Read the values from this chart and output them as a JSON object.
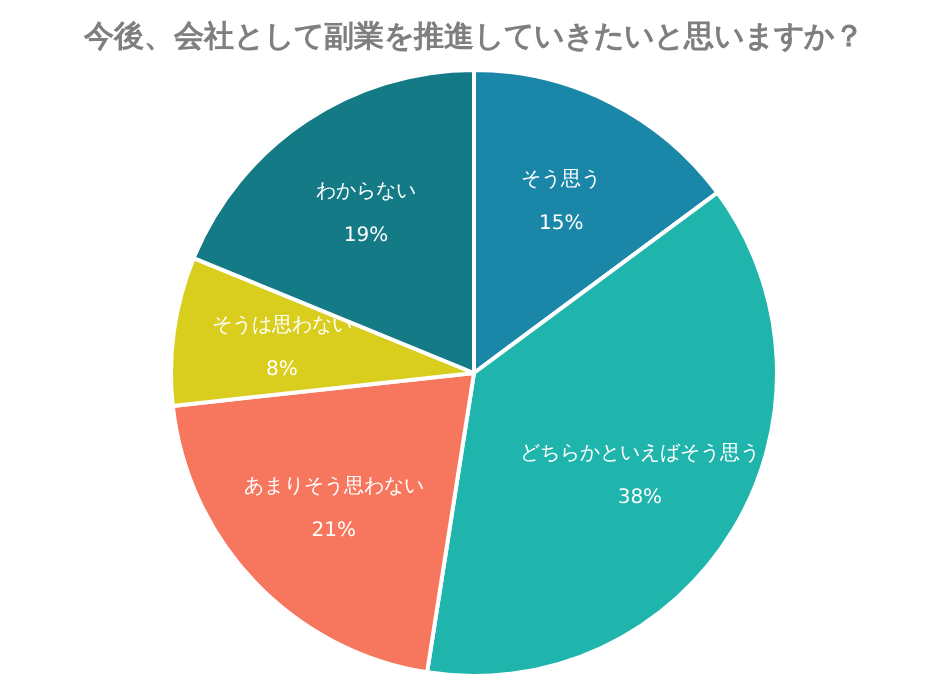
{
  "chart_data": {
    "type": "pie",
    "title": "今後、会社として副業を推進していきたいと思いますか？",
    "categories": [
      "そう思う",
      "どちらかといえばそう思う",
      "あまりそう思わない",
      "そうは思わない",
      "わからない"
    ],
    "values": [
      15,
      38,
      21,
      8,
      19
    ],
    "value_labels": [
      "15%",
      "38%",
      "21%",
      "8%",
      "19%"
    ],
    "colors": [
      "#1b87a8",
      "#1fb5ac",
      "#f7775e",
      "#d9cd1e",
      "#137a86"
    ],
    "legend": false
  }
}
